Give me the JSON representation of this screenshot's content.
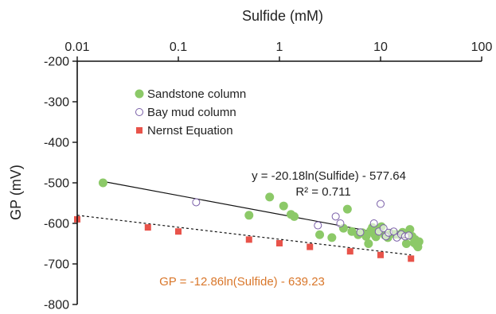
{
  "chart_data": {
    "type": "scatter",
    "title": "",
    "xlabel": "Sulfide (mM)",
    "ylabel": "GP (mV)",
    "x_scale": "log",
    "xlim": [
      0.01,
      100
    ],
    "ylim": [
      -800,
      -200
    ],
    "x_ticks": [
      0.01,
      0.1,
      1,
      10,
      100
    ],
    "x_tick_labels": [
      "0.01",
      "0.1",
      "1",
      "10",
      "100"
    ],
    "y_ticks": [
      -200,
      -300,
      -400,
      -500,
      -600,
      -700,
      -800
    ],
    "y_tick_labels": [
      "-200",
      "-300",
      "-400",
      "-500",
      "-600",
      "-700",
      "-800"
    ],
    "grid": false,
    "legend_position": "top-left",
    "series": [
      {
        "name": "Sandstone column",
        "marker": "filled-circle",
        "color": "#8cc968",
        "points": [
          [
            0.018,
            -500
          ],
          [
            0.5,
            -580
          ],
          [
            0.8,
            -535
          ],
          [
            1.1,
            -557
          ],
          [
            1.3,
            -578
          ],
          [
            1.4,
            -583
          ],
          [
            2.5,
            -628
          ],
          [
            3.3,
            -635
          ],
          [
            4.3,
            -612
          ],
          [
            4.7,
            -565
          ],
          [
            5.2,
            -620
          ],
          [
            6.0,
            -628
          ],
          [
            6.6,
            -623
          ],
          [
            7.2,
            -632
          ],
          [
            7.6,
            -650
          ],
          [
            8.0,
            -618
          ],
          [
            8.3,
            -610
          ],
          [
            8.7,
            -627
          ],
          [
            9.0,
            -633
          ],
          [
            9.5,
            -615
          ],
          [
            10.2,
            -608
          ],
          [
            11.0,
            -629
          ],
          [
            11.8,
            -635
          ],
          [
            12.6,
            -625
          ],
          [
            14.0,
            -627
          ],
          [
            15.5,
            -628
          ],
          [
            16.5,
            -622
          ],
          [
            18.0,
            -650
          ],
          [
            19.5,
            -615
          ],
          [
            20.5,
            -632
          ],
          [
            21.5,
            -648
          ],
          [
            22.0,
            -640
          ],
          [
            22.8,
            -654
          ],
          [
            23.4,
            -658
          ],
          [
            24.0,
            -645
          ]
        ]
      },
      {
        "name": "Bay mud column",
        "marker": "open-circle",
        "color": "#7a5fa8",
        "points": [
          [
            0.15,
            -548
          ],
          [
            2.4,
            -605
          ],
          [
            3.6,
            -583
          ],
          [
            4.0,
            -600
          ],
          [
            6.3,
            -622
          ],
          [
            8.6,
            -600
          ],
          [
            9.6,
            -620
          ],
          [
            10.0,
            -552
          ],
          [
            10.7,
            -612
          ],
          [
            11.3,
            -632
          ],
          [
            12.0,
            -623
          ],
          [
            13.5,
            -620
          ],
          [
            14.5,
            -635
          ],
          [
            16.0,
            -627
          ],
          [
            17.5,
            -632
          ],
          [
            19.0,
            -630
          ]
        ]
      },
      {
        "name": "Nernst Equation",
        "marker": "filled-square",
        "color": "#e8534a",
        "points": [
          [
            0.01,
            -590
          ],
          [
            0.05,
            -610
          ],
          [
            0.1,
            -620
          ],
          [
            0.5,
            -640
          ],
          [
            1.0,
            -649
          ],
          [
            2.0,
            -658
          ],
          [
            5.0,
            -669
          ],
          [
            10.0,
            -678
          ],
          [
            20.0,
            -687
          ]
        ]
      }
    ],
    "trendlines": [
      {
        "label": "y = -20.18ln(Sulfide) - 577.64",
        "r2_label": "R² = 0.711",
        "slope": -20.18,
        "intercept": -577.64,
        "x_range": [
          0.018,
          24
        ],
        "style": "solid",
        "color": "#111111",
        "label_color": "#222222"
      },
      {
        "label": "GP = -12.86ln(Sulfide) - 639.23",
        "slope": -12.86,
        "intercept": -639.23,
        "x_range": [
          0.01,
          20
        ],
        "style": "dashed",
        "color": "#111111",
        "label_color": "#d9772b"
      }
    ]
  }
}
